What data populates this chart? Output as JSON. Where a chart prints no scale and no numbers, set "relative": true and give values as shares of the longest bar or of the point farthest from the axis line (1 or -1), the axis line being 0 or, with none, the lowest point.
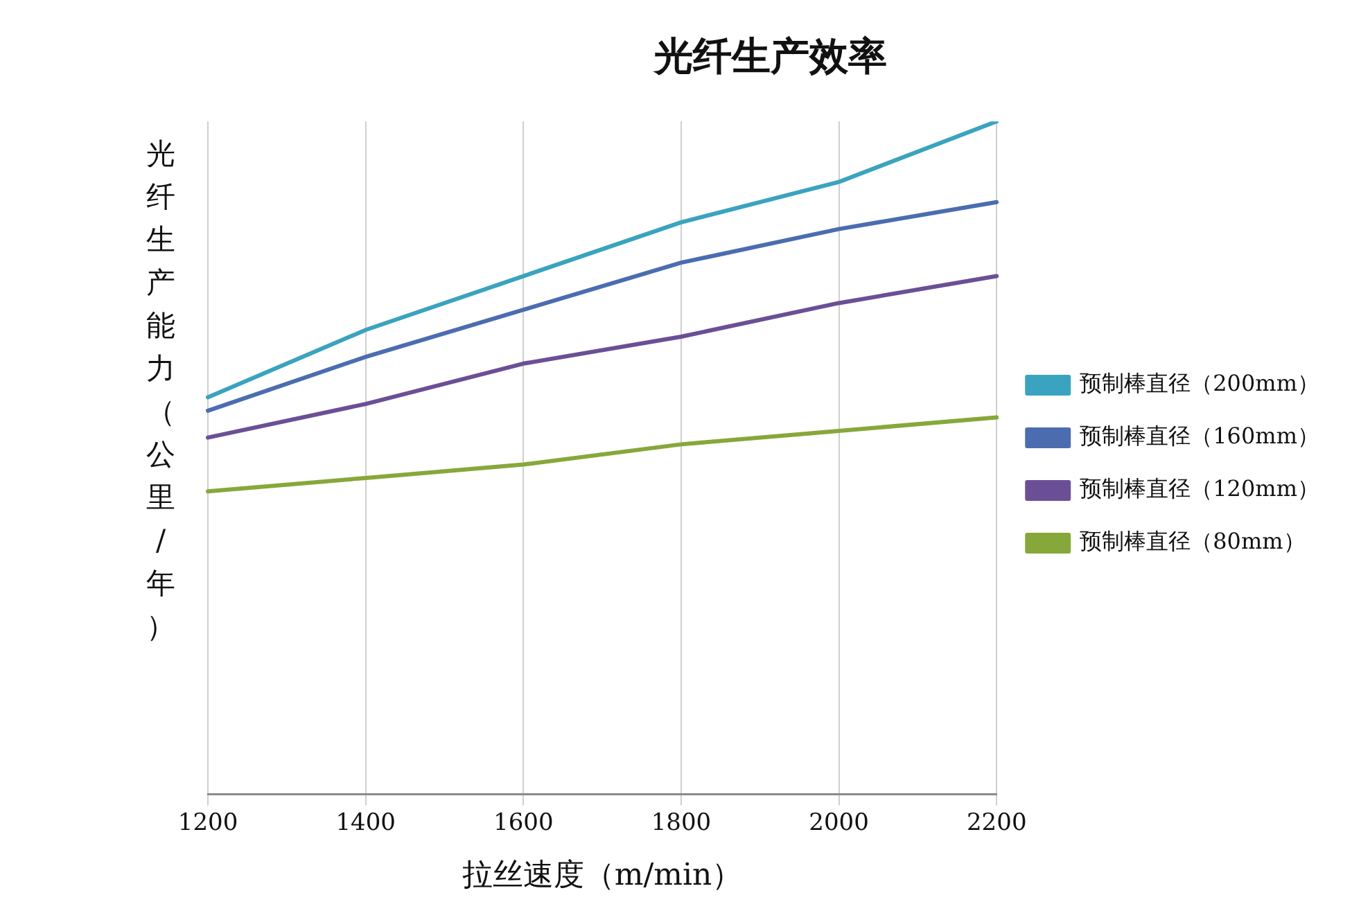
{
  "chart_data": {
    "type": "line",
    "title": "光纤生产效率",
    "xlabel": "拉丝速度（m/min）",
    "ylabel": "光纤生产能力（公里/年）",
    "categories": [
      "1200",
      "1400",
      "1600",
      "1800",
      "2000",
      "2200"
    ],
    "relative": true,
    "series": [
      {
        "name": "预制棒直径（80mm）",
        "color": "#86a83a",
        "values": [
          0.45,
          0.47,
          0.49,
          0.52,
          0.54,
          0.56
        ]
      },
      {
        "name": "预制棒直径（120mm）",
        "color": "#6b4f96",
        "values": [
          0.53,
          0.58,
          0.64,
          0.68,
          0.73,
          0.77
        ]
      },
      {
        "name": "预制棒直径（160mm）",
        "color": "#4b6db0",
        "values": [
          0.57,
          0.65,
          0.72,
          0.79,
          0.84,
          0.88
        ]
      },
      {
        "name": "预制棒直径（200mm）",
        "color": "#3aa3bf",
        "values": [
          0.59,
          0.69,
          0.77,
          0.85,
          0.91,
          1
        ]
      }
    ],
    "legend": "right",
    "grid": "x",
    "marker": "none"
  }
}
